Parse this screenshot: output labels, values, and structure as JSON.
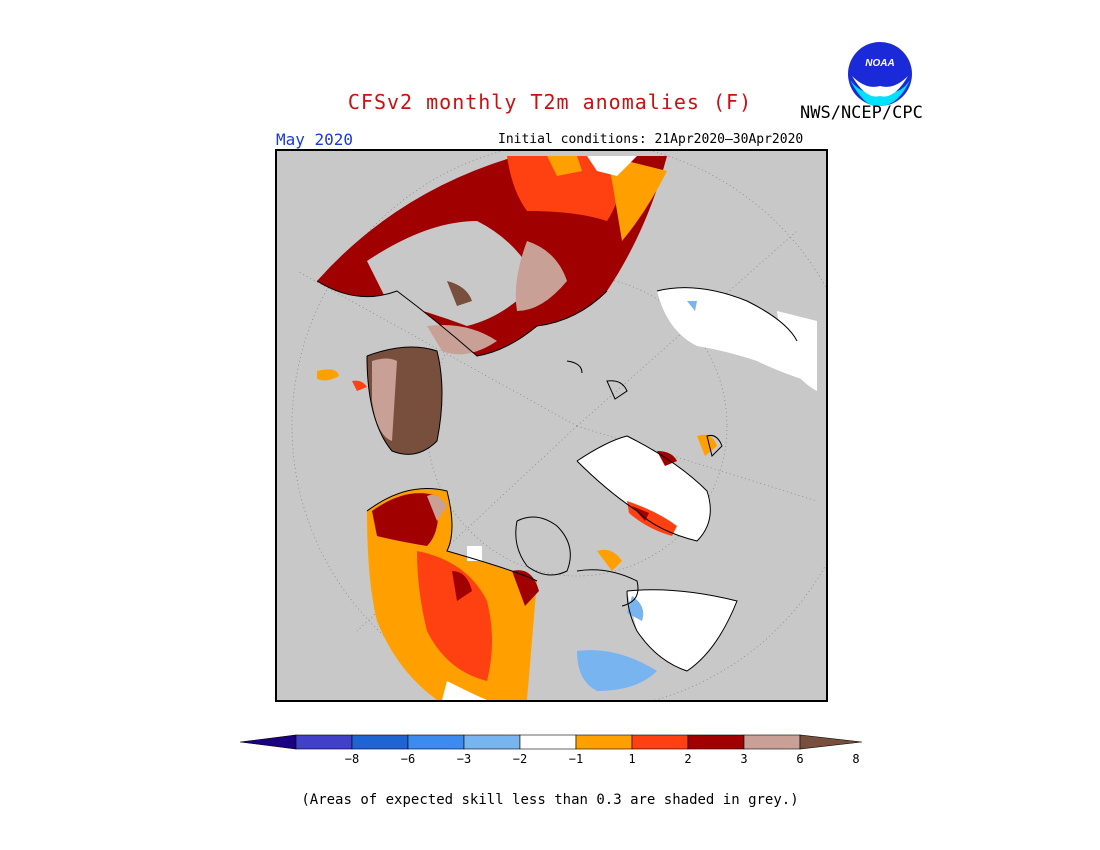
{
  "header": {
    "title": "CFSv2 monthly T2m anomalies (F)",
    "org": "NWS/NCEP/CPC",
    "month": "May 2020",
    "initial_conditions": "Initial conditions: 21Apr2020–30Apr2020",
    "logo_text": "NOAA"
  },
  "legend": {
    "labels": [
      "−8",
      "−6",
      "−3",
      "−2",
      "−1",
      "1",
      "2",
      "3",
      "6",
      "8"
    ],
    "colors": [
      "#1a0080",
      "#4040c8",
      "#1e64d2",
      "#3c8cf0",
      "#78b4f0",
      "#ffffff",
      "#ffa000",
      "#ff4010",
      "#a00000",
      "#c8a096",
      "#784e3c"
    ]
  },
  "footnote": "(Areas of expected skill less than 0.3 are shaded in grey.)",
  "colors": {
    "grey": "#c8c8c8",
    "title_red": "#cc1010",
    "month_blue": "#1a3ad8"
  }
}
